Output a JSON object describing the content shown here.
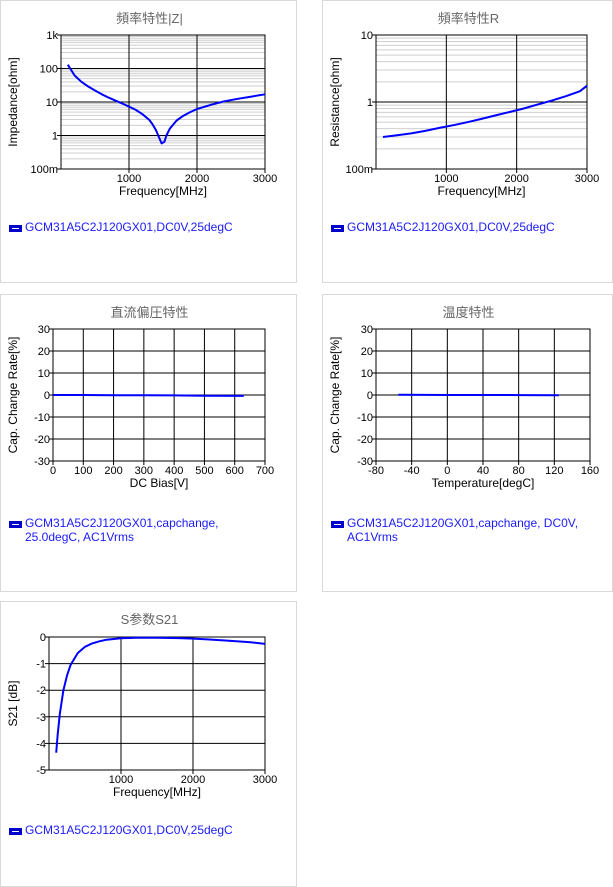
{
  "chart_data": [
    {
      "type": "line",
      "title": "頻率特性|Z|",
      "xlabel": "Frequency[MHz]",
      "ylabel": "Impedance[ohm]",
      "xlim": [
        0,
        3000
      ],
      "ylim": [
        0.1,
        1000
      ],
      "yscale": "log",
      "xticks": [
        "1000",
        "2000",
        "3000"
      ],
      "yticks": [
        "100m",
        "1",
        "10",
        "100",
        "1k"
      ],
      "grid": true,
      "series": [
        {
          "name": "GCM31A5C2J120GX01,DC0V,25degC",
          "color": "#0000ff",
          "x": [
            100,
            200,
            300,
            400,
            500,
            600,
            700,
            800,
            900,
            1000,
            1100,
            1200,
            1300,
            1350,
            1400,
            1450,
            1480,
            1520,
            1550,
            1600,
            1700,
            1800,
            1900,
            2000,
            2200,
            2400,
            2600,
            2800,
            3000
          ],
          "y": [
            130,
            62,
            40,
            29,
            22,
            17,
            13.5,
            11,
            9,
            7.3,
            5.8,
            4.3,
            2.9,
            2.1,
            1.4,
            0.8,
            0.58,
            0.65,
            1.0,
            1.6,
            2.8,
            3.9,
            5.0,
            6.2,
            8.2,
            10.5,
            12.5,
            14.5,
            17
          ]
        }
      ]
    },
    {
      "type": "line",
      "title": "頻率特性R",
      "xlabel": "Frequency[MHz]",
      "ylabel": "Resistance[ohm]",
      "xlim": [
        0,
        3000
      ],
      "ylim": [
        0.1,
        10
      ],
      "yscale": "log",
      "xticks": [
        "1000",
        "2000",
        "3000"
      ],
      "yticks": [
        "100m",
        "1",
        "10"
      ],
      "grid": true,
      "series": [
        {
          "name": "GCM31A5C2J120GX01,DC0V,25degC",
          "color": "#0000ff",
          "x": [
            100,
            300,
            500,
            700,
            900,
            1100,
            1300,
            1500,
            1700,
            1900,
            2100,
            2300,
            2500,
            2700,
            2900,
            3000
          ],
          "y": [
            0.3,
            0.32,
            0.34,
            0.37,
            0.41,
            0.45,
            0.5,
            0.56,
            0.63,
            0.71,
            0.8,
            0.92,
            1.05,
            1.22,
            1.45,
            1.75
          ]
        }
      ]
    },
    {
      "type": "line",
      "title": "直流偏圧特性",
      "xlabel": "DC Bias[V]",
      "ylabel": "Cap. Change Rate[%]",
      "xlim": [
        0,
        700
      ],
      "ylim": [
        -30,
        30
      ],
      "xticks": [
        "0",
        "100",
        "200",
        "300",
        "400",
        "500",
        "600",
        "700"
      ],
      "yticks": [
        "-30",
        "-20",
        "-10",
        "0",
        "10",
        "20",
        "30"
      ],
      "grid": true,
      "series": [
        {
          "name": "GCM31A5C2J120GX01,capchange, 25.0degC, AC1Vrms",
          "color": "#0000ff",
          "x": [
            0,
            100,
            200,
            300,
            400,
            500,
            630
          ],
          "y": [
            0,
            0,
            -0.1,
            -0.1,
            -0.2,
            -0.3,
            -0.4
          ]
        }
      ]
    },
    {
      "type": "line",
      "title": "温度特性",
      "xlabel": "Temperature[degC]",
      "ylabel": "Cap. Change Rate[%]",
      "xlim": [
        -80,
        160
      ],
      "ylim": [
        -30,
        30
      ],
      "xticks": [
        "-80",
        "-40",
        "0",
        "40",
        "80",
        "120",
        "160"
      ],
      "yticks": [
        "-30",
        "-20",
        "-10",
        "0",
        "10",
        "20",
        "30"
      ],
      "grid": true,
      "series": [
        {
          "name": "GCM31A5C2J120GX01,capchange, DC0V, AC1Vrms",
          "color": "#0000ff",
          "x": [
            -55,
            -25,
            0,
            25,
            50,
            85,
            125
          ],
          "y": [
            0.1,
            0.05,
            0.02,
            0,
            -0.02,
            -0.05,
            -0.1
          ]
        }
      ]
    },
    {
      "type": "line",
      "title": "S参数S21",
      "xlabel": "Frequency[MHz]",
      "ylabel": "S21 [dB]",
      "xlim": [
        0,
        3000
      ],
      "ylim": [
        -5,
        0
      ],
      "xticks": [
        "1000",
        "2000",
        "3000"
      ],
      "yticks": [
        "-5",
        "-4",
        "-3",
        "-2",
        "-1",
        "0"
      ],
      "grid": true,
      "series": [
        {
          "name": "GCM31A5C2J120GX01,DC0V,25degC",
          "color": "#0000ff",
          "x": [
            100,
            120,
            150,
            200,
            250,
            300,
            400,
            500,
            600,
            700,
            800,
            1000,
            1200,
            1500,
            1800,
            2000,
            2200,
            2500,
            2800,
            3000
          ],
          "y": [
            -4.35,
            -3.7,
            -2.9,
            -2.0,
            -1.45,
            -1.05,
            -0.6,
            -0.37,
            -0.24,
            -0.16,
            -0.1,
            -0.05,
            -0.03,
            -0.03,
            -0.04,
            -0.06,
            -0.09,
            -0.14,
            -0.2,
            -0.26
          ]
        }
      ]
    }
  ],
  "legends": [
    "GCM31A5C2J120GX01,DC0V,25degC",
    "GCM31A5C2J120GX01,DC0V,25degC",
    "GCM31A5C2J120GX01,capchange,\n25.0degC, AC1Vrms",
    "GCM31A5C2J120GX01,capchange, DC0V,\nAC1Vrms",
    "GCM31A5C2J120GX01,DC0V,25degC"
  ]
}
